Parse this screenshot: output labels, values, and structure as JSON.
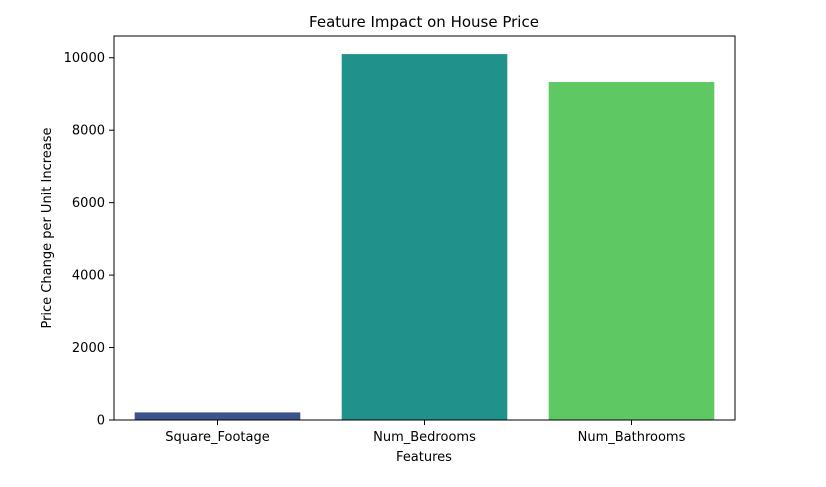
{
  "chart_data": {
    "type": "bar",
    "title": "Feature Impact on House Price",
    "xlabel": "Features",
    "ylabel": "Price Change per Unit Increase",
    "categories": [
      "Square_Footage",
      "Num_Bedrooms",
      "Num_Bathrooms"
    ],
    "values": [
      210,
      10100,
      9330
    ],
    "colors": [
      "#3b528b",
      "#21918c",
      "#5ec962"
    ],
    "ylim": [
      0,
      10600
    ],
    "yticks": [
      0,
      2000,
      4000,
      6000,
      8000,
      10000
    ],
    "ytick_labels": [
      "0",
      "2000",
      "4000",
      "6000",
      "8000",
      "10000"
    ],
    "grid": false,
    "legend": false
  }
}
